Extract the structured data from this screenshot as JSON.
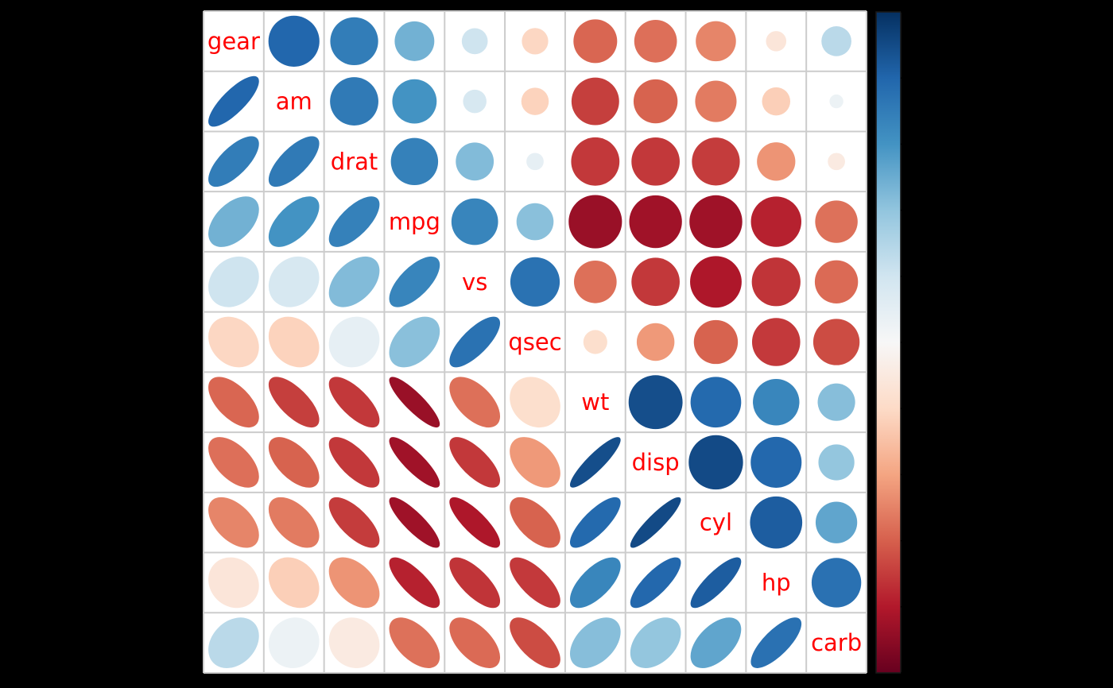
{
  "figure": {
    "background_color": "#000000",
    "plot_background_color": "#ffffff",
    "grid_color": "#cccccc",
    "variable_label_color": "#ff0000"
  },
  "chart_data": {
    "type": "heatmap",
    "subtype": "correlation-matrix-corrplot",
    "title": "",
    "xlabel": "",
    "ylabel": "",
    "variables": [
      "gear",
      "am",
      "drat",
      "mpg",
      "vs",
      "qsec",
      "wt",
      "disp",
      "cyl",
      "hp",
      "carb"
    ],
    "matrix": [
      [
        1.0,
        0.794,
        0.7,
        0.48,
        0.206,
        -0.213,
        -0.583,
        -0.556,
        -0.493,
        -0.126,
        0.274
      ],
      [
        0.794,
        1.0,
        0.713,
        0.6,
        0.168,
        -0.23,
        -0.692,
        -0.591,
        -0.523,
        -0.243,
        0.058
      ],
      [
        0.7,
        0.713,
        1.0,
        0.681,
        0.44,
        0.091,
        -0.712,
        -0.71,
        -0.7,
        -0.449,
        -0.091
      ],
      [
        0.48,
        0.6,
        0.681,
        1.0,
        0.664,
        0.419,
        -0.868,
        -0.848,
        -0.852,
        -0.776,
        -0.551
      ],
      [
        0.206,
        0.168,
        0.44,
        0.664,
        1.0,
        0.745,
        -0.555,
        -0.71,
        -0.811,
        -0.723,
        -0.57
      ],
      [
        -0.213,
        -0.23,
        0.091,
        0.419,
        0.745,
        1.0,
        -0.175,
        -0.434,
        -0.591,
        -0.708,
        -0.656
      ],
      [
        -0.583,
        -0.692,
        -0.712,
        -0.868,
        -0.555,
        -0.175,
        1.0,
        0.888,
        0.782,
        0.659,
        0.428
      ],
      [
        -0.556,
        -0.591,
        -0.71,
        -0.848,
        -0.71,
        -0.434,
        0.888,
        1.0,
        0.902,
        0.791,
        0.395
      ],
      [
        -0.493,
        -0.523,
        -0.7,
        -0.852,
        -0.811,
        -0.591,
        0.782,
        0.902,
        1.0,
        0.832,
        0.527
      ],
      [
        -0.126,
        -0.243,
        -0.449,
        -0.776,
        -0.723,
        -0.708,
        0.659,
        0.791,
        0.832,
        1.0,
        0.75
      ],
      [
        0.274,
        0.058,
        -0.091,
        -0.551,
        -0.57,
        -0.656,
        0.428,
        0.395,
        0.527,
        0.75,
        1.0
      ]
    ],
    "upper_triangle_glyph": "circle",
    "lower_triangle_glyph": "ellipse",
    "diagonal_glyph": "variable-name-label",
    "value_domain": [
      -1,
      1
    ],
    "grid": true,
    "colormap": {
      "name": "RdBu",
      "anchors": [
        "#67001f",
        "#b2182b",
        "#d6604d",
        "#f4a582",
        "#fddbc7",
        "#f7f7f7",
        "#d1e5f0",
        "#92c5de",
        "#4393c3",
        "#2166ac",
        "#053061"
      ]
    },
    "colorbar": {
      "position": "right",
      "orientation": "vertical",
      "top_color": "#053061",
      "bottom_color": "#67001f",
      "outline_color": "#1a1a1a",
      "tick_color": "#000000",
      "tick_count": 11
    }
  }
}
